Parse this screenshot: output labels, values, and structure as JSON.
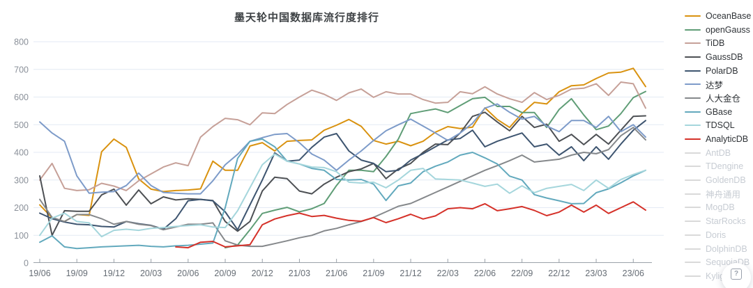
{
  "title": "墨天轮中国数据库流行度排行",
  "help_button": {
    "icon": "?"
  },
  "y_axis": {
    "min": 0,
    "max": 800,
    "step": 100,
    "tick_labels": [
      "0",
      "100",
      "200",
      "300",
      "400",
      "500",
      "600",
      "700",
      "800"
    ]
  },
  "x_axis": {
    "tick_every": 3,
    "shown_ticks": [
      "19/06",
      "19/09",
      "19/12",
      "20/03",
      "20/06",
      "20/09",
      "20/12",
      "21/03",
      "21/06",
      "21/09",
      "21/12",
      "22/03",
      "22/06",
      "22/09",
      "22/12",
      "23/03",
      "23/06"
    ]
  },
  "colors": {
    "grid": "#e3eaf4",
    "axis": "#9aa1a9",
    "tick_label": "#666d75",
    "y_label": "#8a9099",
    "title": "#3d4144",
    "inactive": "#d9d9d9"
  },
  "chart_data": {
    "type": "line",
    "title": "墨天轮中国数据库流行度排行",
    "xlabel": "",
    "ylabel": "",
    "ylim": [
      0,
      800
    ],
    "grid": "horizontal",
    "legend_position": "right",
    "x": [
      "19/06",
      "19/07",
      "19/08",
      "19/09",
      "19/10",
      "19/11",
      "19/12",
      "20/01",
      "20/02",
      "20/03",
      "20/04",
      "20/05",
      "20/06",
      "20/07",
      "20/08",
      "20/09",
      "20/10",
      "20/11",
      "20/12",
      "21/01",
      "21/02",
      "21/03",
      "21/04",
      "21/05",
      "21/06",
      "21/07",
      "21/08",
      "21/09",
      "21/10",
      "21/11",
      "21/12",
      "22/01",
      "22/02",
      "22/03",
      "22/04",
      "22/05",
      "22/06",
      "22/07",
      "22/08",
      "22/09",
      "22/10",
      "22/11",
      "22/12",
      "23/01",
      "23/02",
      "23/03",
      "23/04",
      "23/05",
      "23/06",
      "23/07"
    ],
    "series": [
      {
        "name": "OceanBase",
        "color": "#d9920f",
        "values": [
          210,
          163,
          150,
          175,
          172,
          402,
          448,
          418,
          304,
          267,
          258,
          262,
          264,
          268,
          368,
          335,
          335,
          423,
          435,
          405,
          440,
          443,
          445,
          480,
          498,
          519,
          494,
          443,
          430,
          440,
          424,
          440,
          473,
          493,
          486,
          491,
          561,
          519,
          490,
          541,
          581,
          575,
          619,
          641,
          644,
          667,
          687,
          690,
          704,
          638
        ]
      },
      {
        "name": "openGauss",
        "color": "#5f9d76",
        "values": [
          null,
          null,
          null,
          null,
          null,
          null,
          null,
          null,
          null,
          null,
          null,
          null,
          null,
          null,
          null,
          55,
          65,
          120,
          179,
          191,
          201,
          185,
          196,
          215,
          280,
          335,
          335,
          330,
          385,
          448,
          540,
          549,
          557,
          544,
          569,
          594,
          599,
          566,
          566,
          544,
          544,
          490,
          555,
          594,
          535,
          482,
          495,
          540,
          598,
          620
        ]
      },
      {
        "name": "TiDB",
        "color": "#c6a098",
        "values": [
          300,
          360,
          270,
          262,
          265,
          288,
          278,
          262,
          297,
          322,
          347,
          362,
          352,
          455,
          493,
          523,
          518,
          500,
          543,
          540,
          573,
          600,
          625,
          610,
          588,
          615,
          629,
          599,
          619,
          611,
          611,
          591,
          578,
          581,
          619,
          612,
          637,
          611,
          594,
          581,
          616,
          591,
          606,
          629,
          632,
          648,
          606,
          654,
          648,
          560
        ]
      },
      {
        "name": "GaussDB",
        "color": "#4d5054",
        "values": [
          315,
          100,
          189,
          187,
          187,
          246,
          267,
          209,
          264,
          214,
          239,
          228,
          232,
          230,
          226,
          150,
          115,
          150,
          260,
          310,
          305,
          260,
          250,
          285,
          310,
          330,
          340,
          360,
          305,
          340,
          360,
          400,
          430,
          428,
          470,
          530,
          545,
          510,
          478,
          530,
          490,
          502,
          440,
          465,
          428,
          465,
          430,
          480,
          530,
          532
        ]
      },
      {
        "name": "PolarDB",
        "color": "#3e5570",
        "values": [
          180,
          160,
          148,
          140,
          138,
          132,
          130,
          150,
          142,
          136,
          122,
          160,
          225,
          230,
          225,
          185,
          120,
          210,
          300,
          398,
          368,
          372,
          418,
          455,
          468,
          405,
          372,
          360,
          330,
          335,
          372,
          395,
          420,
          445,
          450,
          480,
          420,
          440,
          455,
          470,
          420,
          430,
          390,
          420,
          370,
          420,
          375,
          430,
          480,
          515
        ]
      },
      {
        "name": "达梦",
        "color": "#7d9bc9",
        "values": [
          510,
          470,
          440,
          315,
          252,
          256,
          258,
          280,
          325,
          280,
          255,
          252,
          250,
          250,
          297,
          355,
          393,
          440,
          453,
          465,
          468,
          435,
          394,
          372,
          335,
          372,
          405,
          443,
          478,
          500,
          520,
          495,
          470,
          443,
          470,
          505,
          560,
          575,
          545,
          520,
          530,
          495,
          475,
          515,
          515,
          490,
          530,
          475,
          500,
          455
        ]
      },
      {
        "name": "人大金仓",
        "color": "#85888b",
        "values": [
          230,
          165,
          150,
          175,
          175,
          160,
          140,
          150,
          140,
          135,
          120,
          130,
          140,
          140,
          145,
          80,
          65,
          60,
          60,
          70,
          80,
          91,
          100,
          116,
          125,
          138,
          150,
          165,
          185,
          205,
          215,
          235,
          255,
          275,
          295,
          315,
          335,
          352,
          370,
          390,
          365,
          370,
          375,
          390,
          400,
          395,
          410,
          460,
          490,
          445
        ]
      },
      {
        "name": "GBase",
        "color": "#62a9bd",
        "values": [
          75,
          98,
          58,
          52,
          55,
          58,
          60,
          62,
          64,
          60,
          58,
          62,
          64,
          68,
          72,
          200,
          378,
          440,
          448,
          420,
          368,
          358,
          342,
          335,
          302,
          300,
          302,
          285,
          226,
          279,
          289,
          330,
          350,
          365,
          390,
          400,
          380,
          358,
          314,
          300,
          247,
          235,
          225,
          214,
          215,
          254,
          268,
          290,
          315,
          335
        ]
      },
      {
        "name": "TDSQL",
        "color": "#a5d6dc",
        "values": [
          100,
          162,
          180,
          150,
          145,
          95,
          118,
          122,
          118,
          125,
          128,
          132,
          135,
          138,
          130,
          128,
          189,
          272,
          355,
          394,
          368,
          358,
          347,
          345,
          330,
          292,
          289,
          292,
          272,
          300,
          335,
          342,
          304,
          302,
          300,
          289,
          277,
          285,
          252,
          279,
          254,
          270,
          277,
          284,
          262,
          300,
          270,
          302,
          320,
          335
        ]
      },
      {
        "name": "AnalyticDB",
        "color": "#d53129",
        "values": [
          null,
          null,
          null,
          null,
          null,
          null,
          null,
          null,
          null,
          null,
          null,
          58,
          55,
          75,
          78,
          58,
          62,
          66,
          138,
          159,
          171,
          180,
          168,
          172,
          162,
          154,
          151,
          164,
          146,
          160,
          176,
          159,
          170,
          196,
          200,
          196,
          214,
          189,
          196,
          204,
          190,
          171,
          184,
          209,
          184,
          209,
          179,
          200,
          221,
          191
        ]
      }
    ]
  },
  "legend_inactive": [
    "AntDB",
    "TDengine",
    "GoldenDB",
    "神舟通用",
    "MogDB",
    "StarRocks",
    "Doris",
    "DolphinDB",
    "SequoiaDB",
    "Kyligence"
  ]
}
